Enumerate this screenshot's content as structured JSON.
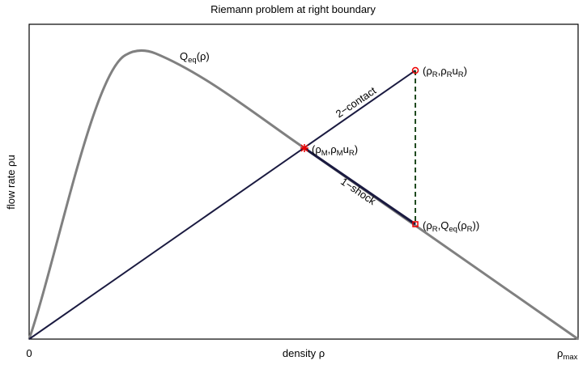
{
  "title": "Riemann problem at right boundary",
  "y_label": "flow rate ρu",
  "x_label": "density ρ",
  "x_ticks": [
    {
      "parts": [
        {
          "t": "0"
        }
      ]
    },
    {
      "parts": [
        {
          "t": "ρ"
        },
        {
          "s": "max"
        }
      ]
    }
  ],
  "labels": [
    {
      "parts": [
        {
          "t": "Q"
        },
        {
          "s": "eq"
        },
        {
          "t": "(ρ)"
        }
      ]
    },
    {
      "parts": [
        {
          "t": "2−contact"
        }
      ]
    },
    {
      "parts": [
        {
          "t": "1−shock"
        }
      ]
    },
    {
      "parts": [
        {
          "t": "(ρ"
        },
        {
          "s": "R"
        },
        {
          "t": ",ρ"
        },
        {
          "s": "R"
        },
        {
          "t": "u"
        },
        {
          "s": "R"
        },
        {
          "t": ")"
        }
      ]
    },
    {
      "parts": [
        {
          "t": "(ρ"
        },
        {
          "s": "M"
        },
        {
          "t": ",ρ"
        },
        {
          "s": "M"
        },
        {
          "t": "u"
        },
        {
          "s": "R"
        },
        {
          "t": ")"
        }
      ]
    },
    {
      "parts": [
        {
          "t": "(ρ"
        },
        {
          "s": "R"
        },
        {
          "t": ",Q"
        },
        {
          "s": "eq"
        },
        {
          "t": "(ρ"
        },
        {
          "s": "R"
        },
        {
          "t": "))"
        }
      ]
    }
  ]
}
